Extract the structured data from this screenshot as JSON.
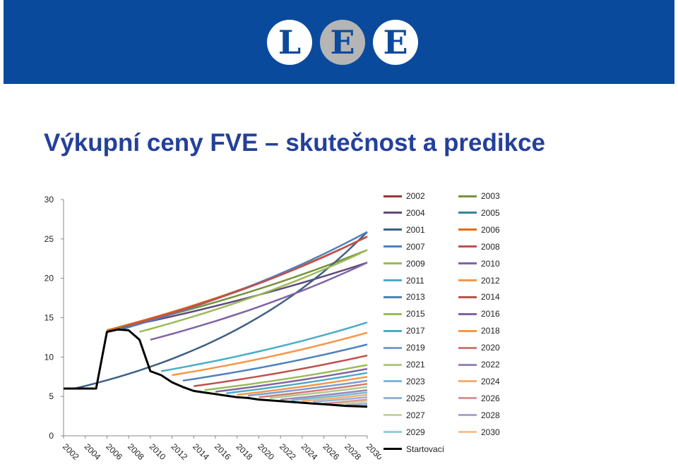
{
  "logo": {
    "letters": [
      "L",
      "E",
      "E"
    ],
    "circle_colors": [
      "#ffffff",
      "#b5b5b5",
      "#ffffff"
    ],
    "letter_color": "#0a4a9c"
  },
  "slide": {
    "title": "Výkupní ceny FVE – skutečnost a predikce",
    "banner_color": "#0a4a9c"
  },
  "chart_data": {
    "type": "line",
    "title": "",
    "xlabel": "",
    "ylabel": "",
    "xlim": [
      2002,
      2030
    ],
    "ylim": [
      0,
      30
    ],
    "x_ticks": [
      "2002",
      "2004",
      "2006",
      "2008",
      "2010",
      "2012",
      "2014",
      "2016",
      "2018",
      "2020",
      "2022",
      "2024",
      "2026",
      "2028",
      "2030"
    ],
    "y_ticks": [
      "0",
      "5",
      "10",
      "15",
      "20",
      "25",
      "30"
    ],
    "grid": false,
    "legend_position": "right",
    "series": [
      {
        "name": "2002",
        "color": "#953735",
        "start_year": 2006,
        "start_value": 13.4,
        "end_value": 25.3
      },
      {
        "name": "2003",
        "color": "#77933c",
        "start_year": 2006,
        "start_value": 13.4,
        "end_value": 23.6
      },
      {
        "name": "2004",
        "color": "#604a7b",
        "start_year": 2006,
        "start_value": 13.4,
        "end_value": 22.0
      },
      {
        "name": "2005",
        "color": "#31859c",
        "start_year": 2006,
        "start_value": 13.4,
        "end_value": 25.3
      },
      {
        "name": "2001",
        "color": "#3f5f85",
        "start_year": 2003,
        "start_value": 6.0,
        "end_value": 25.9
      },
      {
        "name": "2006",
        "color": "#e46c0a",
        "start_year": 2006,
        "start_value": 13.4,
        "end_value": 25.3
      },
      {
        "name": "2007",
        "color": "#4f81bd",
        "start_year": 2007,
        "start_value": 13.4,
        "end_value": 25.9
      },
      {
        "name": "2008",
        "color": "#c0504d",
        "start_year": 2008,
        "start_value": 14.0,
        "end_value": 25.3
      },
      {
        "name": "2009",
        "color": "#9bbb59",
        "start_year": 2009,
        "start_value": 13.2,
        "end_value": 23.6
      },
      {
        "name": "2010",
        "color": "#8064a2",
        "start_year": 2010,
        "start_value": 12.2,
        "end_value": 22.0
      },
      {
        "name": "2011",
        "color": "#4bacc6",
        "start_year": 2011,
        "start_value": 8.2,
        "end_value": 14.4
      },
      {
        "name": "2012",
        "color": "#f79646",
        "start_year": 2012,
        "start_value": 7.7,
        "end_value": 13.1
      },
      {
        "name": "2013",
        "color": "#4f81bd",
        "start_year": 2013,
        "start_value": 7.0,
        "end_value": 11.6
      },
      {
        "name": "2014",
        "color": "#c0504d",
        "start_year": 2014,
        "start_value": 6.3,
        "end_value": 10.2
      },
      {
        "name": "2015",
        "color": "#9bbb59",
        "start_year": 2015,
        "start_value": 5.8,
        "end_value": 9.0
      },
      {
        "name": "2016",
        "color": "#8064a2",
        "start_year": 2016,
        "start_value": 5.6,
        "end_value": 8.5
      },
      {
        "name": "2017",
        "color": "#4bacc6",
        "start_year": 2017,
        "start_value": 5.4,
        "end_value": 8.0
      },
      {
        "name": "2018",
        "color": "#f79646",
        "start_year": 2018,
        "start_value": 5.2,
        "end_value": 7.5
      },
      {
        "name": "2019",
        "color": "#7a9ccf",
        "start_year": 2019,
        "start_value": 5.1,
        "end_value": 7.0
      },
      {
        "name": "2020",
        "color": "#cd7a77",
        "start_year": 2020,
        "start_value": 4.9,
        "end_value": 6.6
      },
      {
        "name": "2021",
        "color": "#aec983",
        "start_year": 2021,
        "start_value": 4.8,
        "end_value": 6.2
      },
      {
        "name": "2022",
        "color": "#9a85b8",
        "start_year": 2022,
        "start_value": 4.6,
        "end_value": 5.8
      },
      {
        "name": "2023",
        "color": "#72bcd4",
        "start_year": 2023,
        "start_value": 4.5,
        "end_value": 5.5
      },
      {
        "name": "2024",
        "color": "#f9ad72",
        "start_year": 2024,
        "start_value": 4.4,
        "end_value": 5.2
      },
      {
        "name": "2025",
        "color": "#95b3d7",
        "start_year": 2025,
        "start_value": 4.3,
        "end_value": 4.9
      },
      {
        "name": "2026",
        "color": "#d99694",
        "start_year": 2026,
        "start_value": 4.1,
        "end_value": 4.6
      },
      {
        "name": "2027",
        "color": "#c3d69b",
        "start_year": 2027,
        "start_value": 4.0,
        "end_value": 4.4
      },
      {
        "name": "2028",
        "color": "#b3a2c7",
        "start_year": 2028,
        "start_value": 3.9,
        "end_value": 4.1
      },
      {
        "name": "2029",
        "color": "#93cddd",
        "start_year": 2029,
        "start_value": 3.8,
        "end_value": 3.9
      },
      {
        "name": "2030",
        "color": "#fac08f",
        "start_year": 2030,
        "start_value": 3.7,
        "end_value": 3.7
      },
      {
        "name": "Startovací",
        "color": "#000000",
        "x": [
          2002,
          2003,
          2004,
          2005,
          2006,
          2007,
          2008,
          2009,
          2010,
          2011,
          2012,
          2013,
          2014,
          2015,
          2016,
          2017,
          2018,
          2019,
          2020,
          2021,
          2022,
          2023,
          2024,
          2025,
          2026,
          2027,
          2028,
          2029,
          2030
        ],
        "y": [
          6.0,
          6.0,
          6.0,
          6.0,
          13.2,
          13.5,
          13.4,
          12.2,
          8.2,
          7.7,
          6.8,
          6.2,
          5.7,
          5.5,
          5.3,
          5.1,
          4.9,
          4.8,
          4.6,
          4.5,
          4.4,
          4.3,
          4.2,
          4.1,
          4.0,
          3.9,
          3.8,
          3.75,
          3.7
        ]
      }
    ]
  }
}
